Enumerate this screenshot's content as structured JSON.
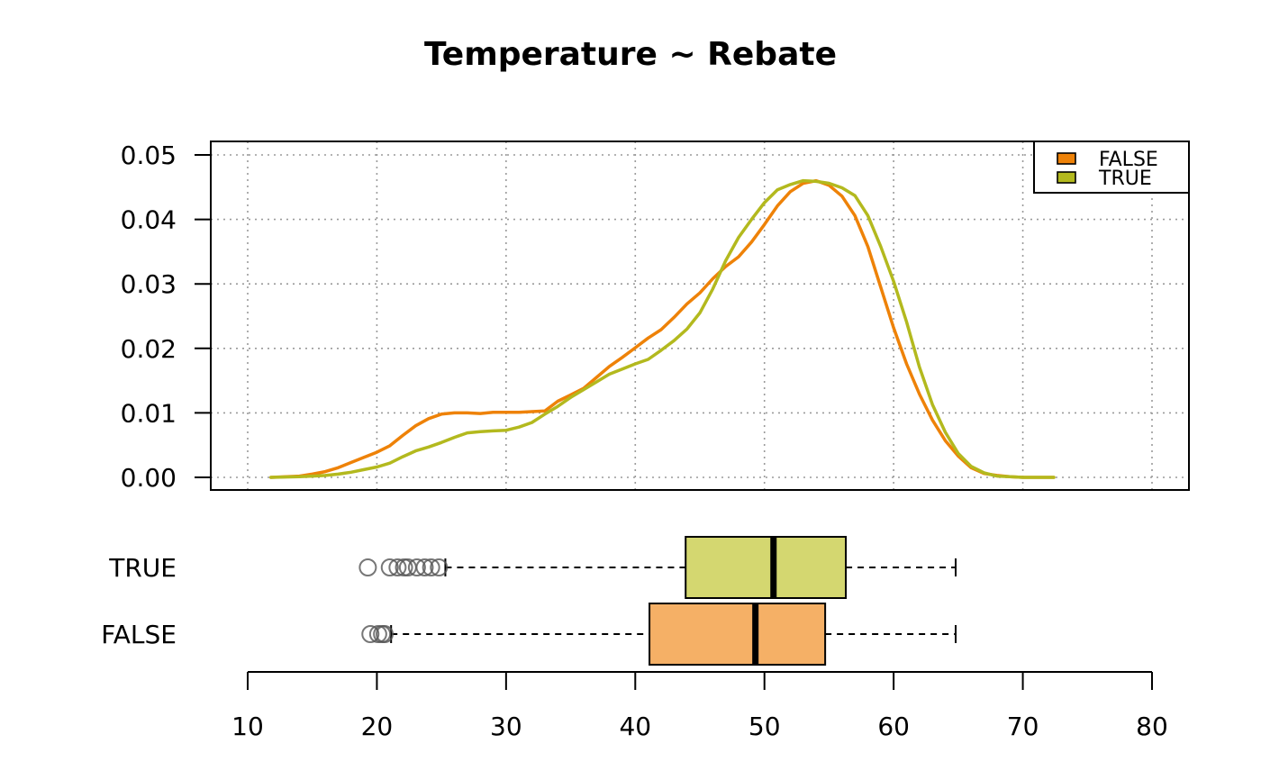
{
  "chart_data": [
    {
      "type": "line",
      "title": "Temperature ~ Rebate",
      "xlabel": "",
      "ylabel": "",
      "xlim": [
        10,
        80
      ],
      "ylim": [
        0,
        0.05
      ],
      "grid": true,
      "legend_position": "top-right",
      "y_ticks": [
        "0.00",
        "0.01",
        "0.02",
        "0.03",
        "0.04",
        "0.05"
      ],
      "series": [
        {
          "name": "FALSE",
          "color": "#ee8208",
          "x": [
            11.8,
            14,
            15,
            16,
            17,
            18,
            19,
            20,
            21,
            22,
            23,
            24,
            25,
            26,
            27,
            28,
            29,
            30,
            31,
            32,
            33,
            34,
            35,
            36,
            37,
            38,
            39,
            40,
            41,
            42,
            43,
            44,
            45,
            46,
            47,
            48,
            49,
            50,
            51,
            52,
            53,
            54,
            55,
            56,
            57,
            58,
            59,
            60,
            61,
            62,
            63,
            64,
            65,
            66,
            67,
            68,
            69,
            70,
            72.4
          ],
          "y": [
            0,
            0.0002,
            0.0005,
            0.0009,
            0.0015,
            0.0023,
            0.0031,
            0.0039,
            0.0049,
            0.0065,
            0.008,
            0.0091,
            0.0098,
            0.01,
            0.01,
            0.0099,
            0.0101,
            0.0101,
            0.0101,
            0.0102,
            0.0103,
            0.0118,
            0.0128,
            0.0138,
            0.0155,
            0.0172,
            0.0186,
            0.0201,
            0.0216,
            0.0229,
            0.0248,
            0.0269,
            0.0286,
            0.0308,
            0.0327,
            0.0342,
            0.0365,
            0.0392,
            0.0421,
            0.0443,
            0.0456,
            0.046,
            0.0453,
            0.0436,
            0.0406,
            0.0358,
            0.0295,
            0.0232,
            0.0176,
            0.0129,
            0.0089,
            0.0057,
            0.0033,
            0.0015,
            0.0006,
            0.0003,
            0.0001,
            0,
            0
          ]
        },
        {
          "name": "TRUE",
          "color": "#b3b91e",
          "x": [
            11.8,
            14,
            15,
            16,
            17,
            18,
            19,
            20,
            21,
            22,
            23,
            24,
            25,
            26,
            27,
            28,
            29,
            30,
            31,
            32,
            33,
            34,
            35,
            36,
            37,
            38,
            39,
            40,
            41,
            42,
            43,
            44,
            45,
            46,
            47,
            48,
            49,
            50,
            51,
            52,
            53,
            54,
            55,
            56,
            57,
            58,
            59,
            60,
            61,
            62,
            63,
            64,
            65,
            66,
            67,
            68,
            69,
            70,
            72.4
          ],
          "y": [
            0,
            0.0001,
            0.0002,
            0.0003,
            0.0005,
            0.0008,
            0.0012,
            0.0016,
            0.0022,
            0.0032,
            0.0041,
            0.0047,
            0.0054,
            0.0062,
            0.0069,
            0.0071,
            0.0072,
            0.0073,
            0.0078,
            0.0085,
            0.0098,
            0.011,
            0.0124,
            0.0136,
            0.0148,
            0.016,
            0.0168,
            0.0176,
            0.0183,
            0.0197,
            0.0212,
            0.023,
            0.0255,
            0.0292,
            0.0336,
            0.0372,
            0.04,
            0.0426,
            0.0446,
            0.0454,
            0.046,
            0.0459,
            0.0456,
            0.0449,
            0.0437,
            0.0406,
            0.0358,
            0.0304,
            0.0241,
            0.0171,
            0.0113,
            0.007,
            0.0037,
            0.0017,
            0.0007,
            0.0002,
            0.0001,
            0,
            0
          ]
        }
      ]
    },
    {
      "type": "box",
      "xlim": [
        10,
        80
      ],
      "x_ticks": [
        "10",
        "20",
        "30",
        "40",
        "50",
        "60",
        "70",
        "80"
      ],
      "groups": [
        {
          "name": "TRUE",
          "fill": "#d4d770",
          "whisker_low": 25.3,
          "q1": 43.9,
          "median": 50.7,
          "q3": 56.3,
          "whisker_high": 64.8,
          "outliers": [
            19.3,
            21.0,
            21.6,
            22.1,
            22.4,
            23.1,
            23.7,
            24.2,
            24.8
          ]
        },
        {
          "name": "FALSE",
          "fill": "#f5b066",
          "whisker_low": 21.1,
          "q1": 41.1,
          "median": 49.3,
          "q3": 54.7,
          "whisker_high": 64.8,
          "outliers": [
            19.5,
            20.1,
            20.4,
            20.6
          ]
        }
      ]
    }
  ]
}
